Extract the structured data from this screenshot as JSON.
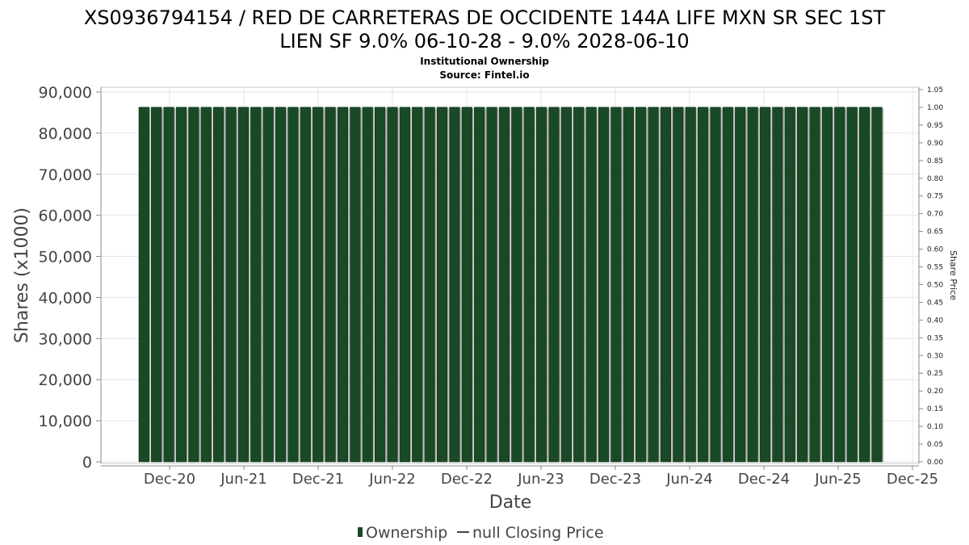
{
  "chart_data": {
    "type": "bar",
    "title_lines": [
      "XS0936794154 / RED DE CARRETERAS DE OCCIDENTE 144A LIFE MXN SR SEC 1ST",
      "LIEN SF 9.0% 06-10-28 - 9.0% 2028-06-10"
    ],
    "subtitle_lines": [
      "Institutional Ownership",
      "Source: Fintel.io"
    ],
    "xlabel": "Date",
    "ylabel": "Shares (x1000)",
    "y2label": "Share Price",
    "ylim": [
      0,
      90000
    ],
    "y_ticks": [
      "0",
      "10,000",
      "20,000",
      "30,000",
      "40,000",
      "50,000",
      "60,000",
      "70,000",
      "80,000",
      "90,000"
    ],
    "y2lim": [
      0,
      1.05
    ],
    "y2_ticks": [
      "0.00",
      "0.05",
      "0.10",
      "0.15",
      "0.20",
      "0.25",
      "0.30",
      "0.35",
      "0.40",
      "0.45",
      "0.50",
      "0.55",
      "0.60",
      "0.65",
      "0.70",
      "0.75",
      "0.80",
      "0.85",
      "0.90",
      "0.95",
      "1.00",
      "1.05"
    ],
    "x_ticks": [
      "Dec-20",
      "Jun-21",
      "Dec-21",
      "Jun-22",
      "Dec-22",
      "Jun-23",
      "Dec-23",
      "Jun-24",
      "Dec-24",
      "Jun-25",
      "Dec-25"
    ],
    "series": [
      {
        "name": "Ownership",
        "color": "#1a4a25",
        "bar_count": 60,
        "value": 86300
      },
      {
        "name": "null Closing Price",
        "color": "#444444",
        "values": []
      }
    ],
    "grid": true,
    "legend": "bottom"
  }
}
